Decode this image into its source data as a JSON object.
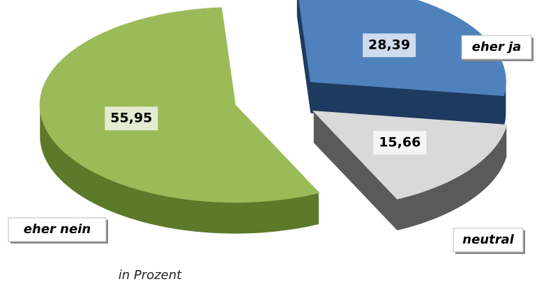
{
  "chart_data": {
    "type": "pie",
    "categories": [
      "eher ja",
      "neutral",
      "eher nein"
    ],
    "values": [
      28.39,
      15.66,
      55.95
    ],
    "value_labels": [
      "28,39",
      "15,66",
      "55,95"
    ],
    "colors": [
      "#4f81bd",
      "#d9d9d9",
      "#9bbb59"
    ],
    "caption": "in Prozent"
  }
}
